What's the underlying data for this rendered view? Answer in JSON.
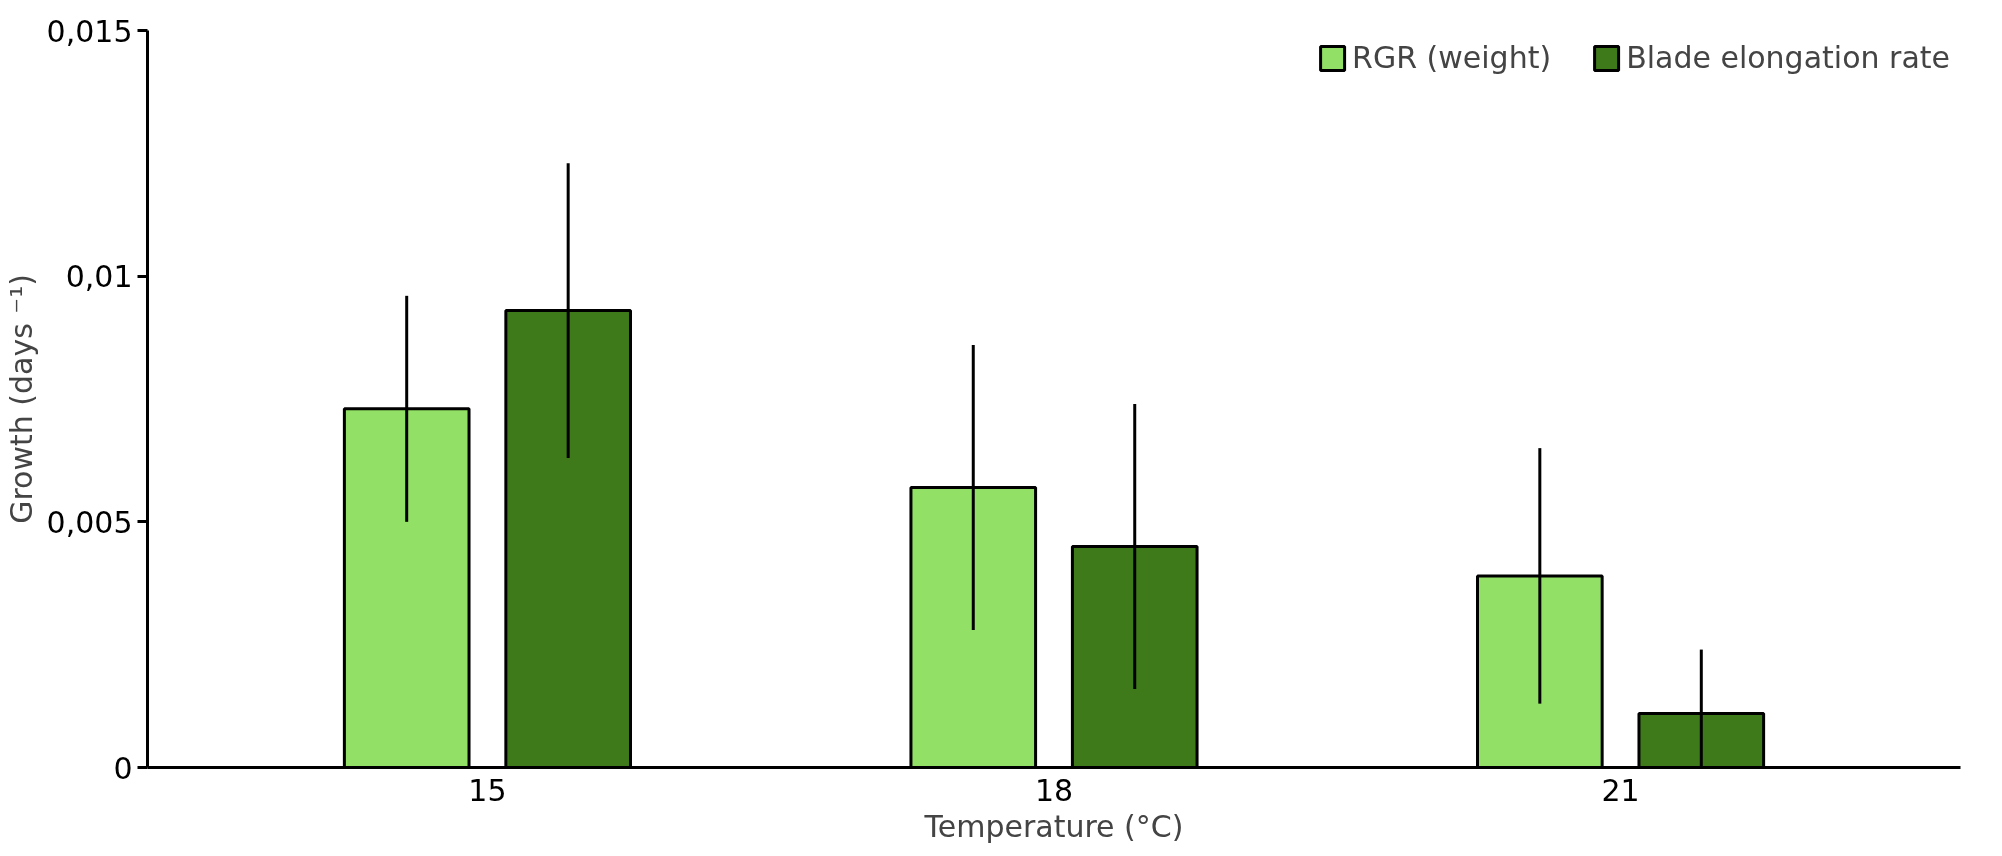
{
  "chart_data": {
    "type": "bar",
    "xlabel": "Temperature (°C)",
    "ylabel": "Growth (days ⁻¹)",
    "categories": [
      "15",
      "18",
      "21"
    ],
    "series": [
      {
        "name": "RGR (weight)",
        "color": "#92e065",
        "values": [
          0.0073,
          0.0057,
          0.0039
        ],
        "errors": [
          0.0023,
          0.0029,
          0.0026
        ]
      },
      {
        "name": "Blade elongation rate",
        "color": "#3e7a1a",
        "values": [
          0.0093,
          0.0045,
          0.0011
        ],
        "errors": [
          0.003,
          0.0029,
          0.0013
        ]
      }
    ],
    "ylim": [
      0,
      0.015
    ],
    "yticks": [
      0,
      {
        "value": 0.005,
        "label": "0,005"
      },
      {
        "value": 0.01,
        "label": "0,01"
      },
      {
        "value": 0.015,
        "label": "0,015"
      }
    ],
    "grid": false,
    "legend": "top right"
  }
}
